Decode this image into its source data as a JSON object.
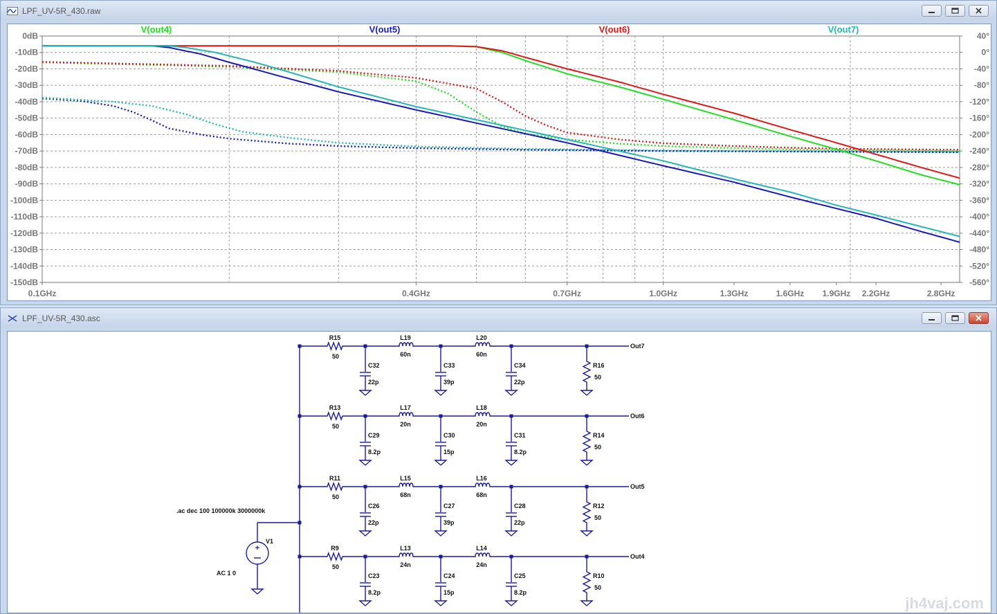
{
  "waveform_window": {
    "title": "LPF_UV-5R_430.raw",
    "traces": [
      {
        "label": "V(out4)",
        "color": "#22dd22"
      },
      {
        "label": "V(out5)",
        "color": "#1a1ab4"
      },
      {
        "label": "V(out6)",
        "color": "#dd1818"
      },
      {
        "label": "V(out7)",
        "color": "#22b6b6"
      }
    ]
  },
  "schematic_window": {
    "title": "LPF_UV-5R_430.asc",
    "directive": ".ac dec 100 100000k 3000000k",
    "source": {
      "name": "V1",
      "value": "AC 1 0"
    },
    "filters": [
      {
        "out": "Out7",
        "R_in": {
          "name": "R15",
          "value": "50"
        },
        "C1": {
          "name": "C32",
          "value": "22p"
        },
        "L1": {
          "name": "L19",
          "value": "60n"
        },
        "C2": {
          "name": "C33",
          "value": "39p"
        },
        "L2": {
          "name": "L20",
          "value": "60n"
        },
        "C3": {
          "name": "C34",
          "value": "22p"
        },
        "R_load": {
          "name": "R16",
          "value": "50"
        }
      },
      {
        "out": "Out6",
        "R_in": {
          "name": "R13",
          "value": "50"
        },
        "C1": {
          "name": "C29",
          "value": "8.2p"
        },
        "L1": {
          "name": "L17",
          "value": "20n"
        },
        "C2": {
          "name": "C30",
          "value": "15p"
        },
        "L2": {
          "name": "L18",
          "value": "20n"
        },
        "C3": {
          "name": "C31",
          "value": "8.2p"
        },
        "R_load": {
          "name": "R14",
          "value": "50"
        }
      },
      {
        "out": "Out5",
        "R_in": {
          "name": "R11",
          "value": "50"
        },
        "C1": {
          "name": "C26",
          "value": "22p"
        },
        "L1": {
          "name": "L15",
          "value": "68n"
        },
        "C2": {
          "name": "C27",
          "value": "39p"
        },
        "L2": {
          "name": "L16",
          "value": "68n"
        },
        "C3": {
          "name": "C28",
          "value": "22p"
        },
        "R_load": {
          "name": "R12",
          "value": "50"
        }
      },
      {
        "out": "Out4",
        "R_in": {
          "name": "R9",
          "value": "50"
        },
        "C1": {
          "name": "C23",
          "value": "8.2p"
        },
        "L1": {
          "name": "L13",
          "value": "24n"
        },
        "C2": {
          "name": "C24",
          "value": "15p"
        },
        "L2": {
          "name": "L14",
          "value": "24n"
        },
        "C3": {
          "name": "C25",
          "value": "8.2p"
        },
        "R_load": {
          "name": "R10",
          "value": "50"
        }
      }
    ]
  },
  "watermark": "jh4vaj.com",
  "chart_data": {
    "type": "line",
    "title": "",
    "x_ticks": [
      "0.1GHz",
      "0.4GHz",
      "0.7GHz",
      "1.0GHz",
      "1.3GHz",
      "1.6GHz",
      "1.9GHz",
      "2.2GHz",
      "2.8GHz"
    ],
    "x_tick_values": [
      0.1,
      0.4,
      0.7,
      1.0,
      1.3,
      1.6,
      1.9,
      2.2,
      2.8
    ],
    "x_scale": "log",
    "xlim": [
      0.1,
      3.0
    ],
    "y_left_ticks": [
      "0dB",
      "-10dB",
      "-20dB",
      "-30dB",
      "-40dB",
      "-50dB",
      "-60dB",
      "-70dB",
      "-80dB",
      "-90dB",
      "-100dB",
      "-110dB",
      "-120dB",
      "-130dB",
      "-140dB",
      "-150dB"
    ],
    "y_left_lim": [
      -150,
      0
    ],
    "y_right_ticks": [
      "40°",
      "0°",
      "-40°",
      "-80°",
      "-120°",
      "-160°",
      "-200°",
      "-240°",
      "-280°",
      "-320°",
      "-360°",
      "-400°",
      "-440°",
      "-480°",
      "-520°",
      "-560°"
    ],
    "y_right_lim": [
      -560,
      40
    ],
    "grid": true,
    "series": [
      {
        "name": "V(out4)",
        "color": "#22dd22",
        "magnitude_db": [
          [
            0.1,
            -6
          ],
          [
            0.3,
            -6
          ],
          [
            0.45,
            -6
          ],
          [
            0.5,
            -6.5
          ],
          [
            0.55,
            -10
          ],
          [
            0.6,
            -15
          ],
          [
            0.7,
            -23
          ],
          [
            0.85,
            -31
          ],
          [
            1.0,
            -38.5
          ],
          [
            1.3,
            -51
          ],
          [
            1.6,
            -61
          ],
          [
            1.9,
            -69
          ],
          [
            2.2,
            -76
          ],
          [
            2.6,
            -84.5
          ],
          [
            3.0,
            -90.5
          ]
        ],
        "phase_deg": [
          [
            0.1,
            -24
          ],
          [
            0.2,
            -35
          ],
          [
            0.3,
            -48
          ],
          [
            0.4,
            -70
          ],
          [
            0.45,
            -100
          ],
          [
            0.5,
            -145
          ],
          [
            0.55,
            -180
          ],
          [
            0.6,
            -198
          ],
          [
            0.7,
            -212
          ],
          [
            0.85,
            -222
          ],
          [
            1.0,
            -228
          ],
          [
            1.3,
            -233
          ],
          [
            1.6,
            -236
          ],
          [
            2.0,
            -238
          ],
          [
            2.5,
            -239
          ],
          [
            3.0,
            -240
          ]
        ]
      },
      {
        "name": "V(out5)",
        "color": "#1a1ab4",
        "magnitude_db": [
          [
            0.1,
            -6
          ],
          [
            0.15,
            -6
          ],
          [
            0.16,
            -7
          ],
          [
            0.18,
            -11
          ],
          [
            0.2,
            -16
          ],
          [
            0.25,
            -26
          ],
          [
            0.3,
            -34
          ],
          [
            0.4,
            -45
          ],
          [
            0.5,
            -53
          ],
          [
            0.7,
            -65
          ],
          [
            1.0,
            -79
          ],
          [
            1.3,
            -89
          ],
          [
            1.6,
            -98
          ],
          [
            1.9,
            -105
          ],
          [
            2.2,
            -111
          ],
          [
            2.6,
            -119
          ],
          [
            3.0,
            -125.5
          ]
        ],
        "phase_deg": [
          [
            0.1,
            -112
          ],
          [
            0.115,
            -118
          ],
          [
            0.13,
            -130
          ],
          [
            0.14,
            -145
          ],
          [
            0.15,
            -165
          ],
          [
            0.16,
            -185
          ],
          [
            0.18,
            -200
          ],
          [
            0.2,
            -210
          ],
          [
            0.25,
            -222
          ],
          [
            0.3,
            -228
          ],
          [
            0.4,
            -233
          ],
          [
            0.6,
            -237
          ],
          [
            1.0,
            -240
          ],
          [
            2.0,
            -242
          ],
          [
            3.0,
            -243
          ]
        ]
      },
      {
        "name": "V(out6)",
        "color": "#dd1818",
        "magnitude_db": [
          [
            0.1,
            -6
          ],
          [
            0.45,
            -6
          ],
          [
            0.5,
            -6.5
          ],
          [
            0.55,
            -9
          ],
          [
            0.6,
            -13
          ],
          [
            0.7,
            -20
          ],
          [
            0.85,
            -28
          ],
          [
            1.0,
            -35.5
          ],
          [
            1.3,
            -47
          ],
          [
            1.6,
            -57
          ],
          [
            1.9,
            -65
          ],
          [
            2.2,
            -72
          ],
          [
            2.6,
            -80
          ],
          [
            3.0,
            -86.5
          ]
        ],
        "phase_deg": [
          [
            0.1,
            -23
          ],
          [
            0.2,
            -33
          ],
          [
            0.3,
            -45
          ],
          [
            0.4,
            -62
          ],
          [
            0.5,
            -88
          ],
          [
            0.55,
            -120
          ],
          [
            0.6,
            -155
          ],
          [
            0.65,
            -178
          ],
          [
            0.7,
            -195
          ],
          [
            0.85,
            -212
          ],
          [
            1.0,
            -221
          ],
          [
            1.3,
            -228
          ],
          [
            1.6,
            -232
          ],
          [
            2.0,
            -235
          ],
          [
            2.5,
            -236
          ],
          [
            3.0,
            -237
          ]
        ]
      },
      {
        "name": "V(out7)",
        "color": "#22b6b6",
        "magnitude_db": [
          [
            0.1,
            -6
          ],
          [
            0.16,
            -6
          ],
          [
            0.17,
            -7
          ],
          [
            0.19,
            -10
          ],
          [
            0.22,
            -16
          ],
          [
            0.25,
            -22
          ],
          [
            0.3,
            -31
          ],
          [
            0.4,
            -43
          ],
          [
            0.5,
            -51
          ],
          [
            0.7,
            -63
          ],
          [
            1.0,
            -76
          ],
          [
            1.3,
            -87
          ],
          [
            1.6,
            -95
          ],
          [
            1.9,
            -103
          ],
          [
            2.2,
            -109
          ],
          [
            2.6,
            -116
          ],
          [
            3.0,
            -122
          ]
        ],
        "phase_deg": [
          [
            0.1,
            -110
          ],
          [
            0.13,
            -120
          ],
          [
            0.15,
            -130
          ],
          [
            0.17,
            -150
          ],
          [
            0.19,
            -175
          ],
          [
            0.21,
            -193
          ],
          [
            0.25,
            -208
          ],
          [
            0.3,
            -220
          ],
          [
            0.4,
            -229
          ],
          [
            0.6,
            -235
          ],
          [
            1.0,
            -239
          ],
          [
            2.0,
            -241
          ],
          [
            3.0,
            -242
          ]
        ]
      }
    ]
  }
}
